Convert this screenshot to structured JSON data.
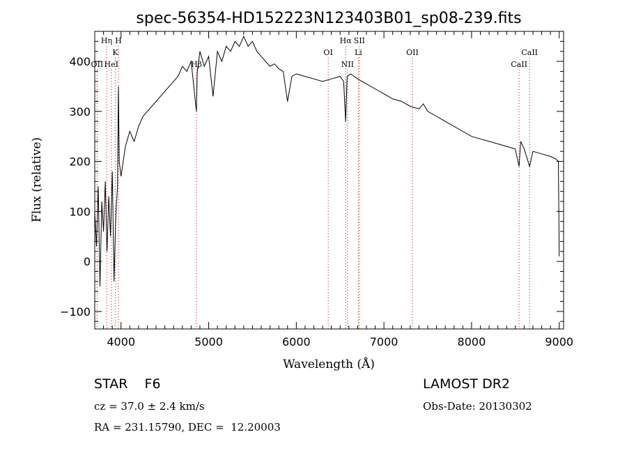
{
  "chart_data": {
    "type": "line",
    "title": "spec-56354-HD152223N123403B01_sp08-239.fits",
    "xlabel": "Wavelength (Å)",
    "ylabel": "Flux (relative)",
    "xlim": [
      3700,
      9050
    ],
    "ylim": [
      -135,
      460
    ],
    "x_ticks": [
      4000,
      5000,
      6000,
      7000,
      8000,
      9000
    ],
    "y_ticks": [
      -100,
      0,
      100,
      200,
      300,
      400
    ],
    "grid": false,
    "series": [
      {
        "x": [
          3700,
          3720,
          3740,
          3760,
          3780,
          3800,
          3820,
          3840,
          3860,
          3880,
          3900,
          3920,
          3940,
          3960,
          3970,
          3980,
          4000,
          4050,
          4100,
          4150,
          4200,
          4250,
          4300,
          4350,
          4400,
          4450,
          4500,
          4550,
          4600,
          4650,
          4700,
          4750,
          4800,
          4860,
          4870,
          4900,
          4950,
          5000,
          5050,
          5100,
          5150,
          5200,
          5250,
          5300,
          5350,
          5400,
          5450,
          5500,
          5550,
          5600,
          5650,
          5700,
          5750,
          5800,
          5850,
          5900,
          5950,
          6000,
          6100,
          6200,
          6300,
          6400,
          6500,
          6540,
          6563,
          6580,
          6620,
          6700,
          6800,
          6900,
          7000,
          7100,
          7200,
          7300,
          7400,
          7450,
          7500,
          7600,
          7700,
          7800,
          7900,
          8000,
          8100,
          8200,
          8300,
          8400,
          8498,
          8542,
          8560,
          8600,
          8662,
          8700,
          8800,
          8900,
          8960,
          8990,
          9000
        ],
        "y": [
          100,
          30,
          150,
          -50,
          120,
          60,
          160,
          20,
          130,
          50,
          180,
          -40,
          90,
          150,
          350,
          200,
          170,
          230,
          260,
          240,
          270,
          290,
          300,
          310,
          320,
          330,
          340,
          350,
          360,
          370,
          390,
          380,
          400,
          300,
          380,
          420,
          390,
          410,
          330,
          420,
          400,
          430,
          420,
          440,
          430,
          450,
          430,
          440,
          420,
          410,
          400,
          390,
          395,
          385,
          380,
          320,
          370,
          375,
          370,
          365,
          360,
          365,
          370,
          360,
          280,
          370,
          375,
          365,
          355,
          345,
          335,
          325,
          320,
          310,
          305,
          315,
          300,
          290,
          280,
          270,
          260,
          250,
          245,
          240,
          235,
          230,
          225,
          190,
          240,
          225,
          190,
          220,
          215,
          210,
          205,
          200,
          10
        ]
      }
    ],
    "lines": [
      {
        "label": "Hη",
        "x": 3835,
        "row": 1
      },
      {
        "label": "H",
        "x": 3970,
        "row": 1
      },
      {
        "label": "K",
        "x": 3934,
        "row": 2
      },
      {
        "label": "OII",
        "x": 3727,
        "row": 3
      },
      {
        "label": "HeI",
        "x": 3889,
        "row": 3
      },
      {
        "label": "Hβ",
        "x": 4861,
        "row": 3
      },
      {
        "label": "Hα",
        "x": 6563,
        "row": 1
      },
      {
        "label": "SII",
        "x": 6720,
        "row": 1
      },
      {
        "label": "OI",
        "x": 6364,
        "row": 2
      },
      {
        "label": "Li",
        "x": 6708,
        "row": 2
      },
      {
        "label": "NII",
        "x": 6584,
        "row": 3
      },
      {
        "label": "OII",
        "x": 7325,
        "row": 2
      },
      {
        "label": "CaII",
        "x": 8662,
        "row": 2
      },
      {
        "label": "CaII",
        "x": 8542,
        "row": 3
      }
    ]
  },
  "info": {
    "class_label": "STAR    F6",
    "cz": "cz = 37.0 ± 2.4 km/s",
    "radec": "RA = 231.15790, DEC =  12.20003",
    "survey": "LAMOST DR2",
    "obs_date": "Obs-Date: 20130302"
  },
  "colors": {
    "line_marker": "#cc0000",
    "spectrum": "#000000"
  }
}
